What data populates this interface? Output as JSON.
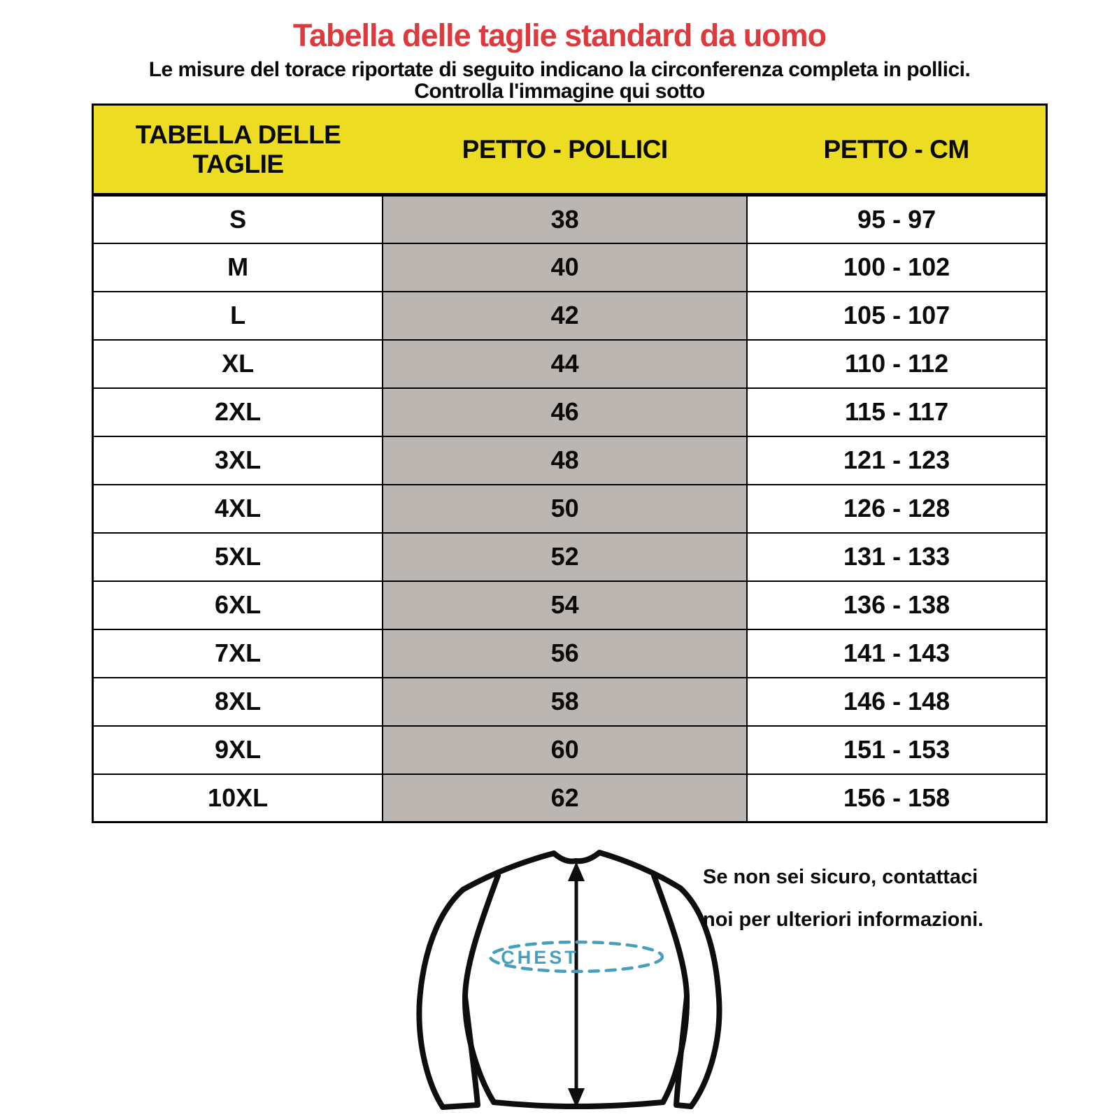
{
  "page": {
    "title": "Tabella delle taglie standard da uomo",
    "subtitle_line1": "Le misure del torace riportate di seguito indicano la circonferenza completa in pollici.",
    "subtitle_line2": "Controlla l'immagine qui sotto"
  },
  "colors": {
    "title_red": "#DE393C",
    "header_yellow": "#ECDD22",
    "middle_column_gray": "#BCB6B2",
    "text_black": "#0a0a0a",
    "chest_teal": "#46A0BC"
  },
  "size_table": {
    "headers": [
      "TABELLA DELLE TAGLIE",
      "PETTO - POLLICI",
      "PETTO - CM"
    ],
    "rows": [
      {
        "size": "S",
        "chest_inches": "38",
        "chest_cm": "95 - 97"
      },
      {
        "size": "M",
        "chest_inches": "40",
        "chest_cm": "100 - 102"
      },
      {
        "size": "L",
        "chest_inches": "42",
        "chest_cm": "105 - 107"
      },
      {
        "size": "XL",
        "chest_inches": "44",
        "chest_cm": "110 - 112"
      },
      {
        "size": "2XL",
        "chest_inches": "46",
        "chest_cm": "115 - 117"
      },
      {
        "size": "3XL",
        "chest_inches": "48",
        "chest_cm": "121 - 123"
      },
      {
        "size": "4XL",
        "chest_inches": "50",
        "chest_cm": "126 - 128"
      },
      {
        "size": "5XL",
        "chest_inches": "52",
        "chest_cm": "131 - 133"
      },
      {
        "size": "6XL",
        "chest_inches": "54",
        "chest_cm": "136 - 138"
      },
      {
        "size": "7XL",
        "chest_inches": "56",
        "chest_cm": "141 - 143"
      },
      {
        "size": "8XL",
        "chest_inches": "58",
        "chest_cm": "146 - 148"
      },
      {
        "size": "9XL",
        "chest_inches": "60",
        "chest_cm": "151 - 153"
      },
      {
        "size": "10XL",
        "chest_inches": "62",
        "chest_cm": "156 - 158"
      }
    ]
  },
  "diagram": {
    "chest_label": "CHEST",
    "note_line1": "Se non sei sicuro, contattaci",
    "note_line2": "noi per ulteriori informazioni."
  }
}
